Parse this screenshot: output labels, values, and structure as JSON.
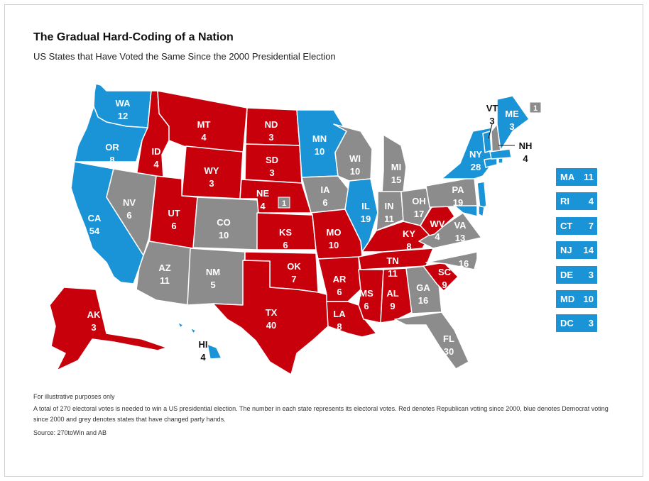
{
  "title": "The Gradual Hard-Coding of a Nation",
  "subtitle": "US States that Have Voted the Same Since the 2000 Presidential Election",
  "colors": {
    "republican": "#c8000c",
    "democrat": "#1a94d6",
    "changed": "#8c8c8c"
  },
  "states": [
    {
      "abbr": "WA",
      "votes": "12",
      "party": "D"
    },
    {
      "abbr": "OR",
      "votes": "8",
      "party": "D"
    },
    {
      "abbr": "CA",
      "votes": "54",
      "party": "D"
    },
    {
      "abbr": "ID",
      "votes": "4",
      "party": "R"
    },
    {
      "abbr": "NV",
      "votes": "6",
      "party": "C"
    },
    {
      "abbr": "MT",
      "votes": "4",
      "party": "R"
    },
    {
      "abbr": "WY",
      "votes": "3",
      "party": "R"
    },
    {
      "abbr": "UT",
      "votes": "6",
      "party": "R"
    },
    {
      "abbr": "AZ",
      "votes": "11",
      "party": "C"
    },
    {
      "abbr": "CO",
      "votes": "10",
      "party": "C"
    },
    {
      "abbr": "NM",
      "votes": "5",
      "party": "C"
    },
    {
      "abbr": "ND",
      "votes": "3",
      "party": "R"
    },
    {
      "abbr": "SD",
      "votes": "3",
      "party": "R"
    },
    {
      "abbr": "NE",
      "votes": "4",
      "party": "R",
      "split": "1"
    },
    {
      "abbr": "KS",
      "votes": "6",
      "party": "R"
    },
    {
      "abbr": "OK",
      "votes": "7",
      "party": "R"
    },
    {
      "abbr": "TX",
      "votes": "40",
      "party": "R"
    },
    {
      "abbr": "MN",
      "votes": "10",
      "party": "D"
    },
    {
      "abbr": "IA",
      "votes": "6",
      "party": "C"
    },
    {
      "abbr": "MO",
      "votes": "10",
      "party": "R"
    },
    {
      "abbr": "AR",
      "votes": "6",
      "party": "R"
    },
    {
      "abbr": "LA",
      "votes": "8",
      "party": "R"
    },
    {
      "abbr": "WI",
      "votes": "10",
      "party": "C"
    },
    {
      "abbr": "IL",
      "votes": "19",
      "party": "D"
    },
    {
      "abbr": "MI",
      "votes": "15",
      "party": "C"
    },
    {
      "abbr": "IN",
      "votes": "11",
      "party": "C"
    },
    {
      "abbr": "OH",
      "votes": "17",
      "party": "C"
    },
    {
      "abbr": "KY",
      "votes": "8",
      "party": "R"
    },
    {
      "abbr": "TN",
      "votes": "11",
      "party": "R"
    },
    {
      "abbr": "MS",
      "votes": "6",
      "party": "R"
    },
    {
      "abbr": "AL",
      "votes": "9",
      "party": "R"
    },
    {
      "abbr": "GA",
      "votes": "16",
      "party": "C"
    },
    {
      "abbr": "FL",
      "votes": "30",
      "party": "C"
    },
    {
      "abbr": "SC",
      "votes": "9",
      "party": "R"
    },
    {
      "abbr": "NC",
      "votes": "16",
      "party": "C"
    },
    {
      "abbr": "VA",
      "votes": "13",
      "party": "C"
    },
    {
      "abbr": "WV",
      "votes": "4",
      "party": "R"
    },
    {
      "abbr": "PA",
      "votes": "19",
      "party": "C"
    },
    {
      "abbr": "NY",
      "votes": "28",
      "party": "D"
    },
    {
      "abbr": "VT",
      "votes": "3",
      "party": "D"
    },
    {
      "abbr": "NH",
      "votes": "4",
      "party": "C"
    },
    {
      "abbr": "ME",
      "votes": "3",
      "party": "D",
      "split": "1"
    },
    {
      "abbr": "AK",
      "votes": "3",
      "party": "R"
    },
    {
      "abbr": "HI",
      "votes": "4",
      "party": "D"
    }
  ],
  "small_states": [
    {
      "abbr": "MA",
      "votes": "11"
    },
    {
      "abbr": "RI",
      "votes": "4"
    },
    {
      "abbr": "CT",
      "votes": "7"
    },
    {
      "abbr": "NJ",
      "votes": "14"
    },
    {
      "abbr": "DE",
      "votes": "3"
    },
    {
      "abbr": "MD",
      "votes": "10"
    },
    {
      "abbr": "DC",
      "votes": "3"
    }
  ],
  "notes": {
    "illustrative": "For illustrative purposes only",
    "description": "A total of 270 electoral votes is needed to win a US presidential election. The number in each state represents its electoral votes. Red denotes Republican voting since 2000, blue denotes Democrat voting since 2000 and grey denotes states that have changed party hands.",
    "source": "Source: 270toWin and AB"
  }
}
